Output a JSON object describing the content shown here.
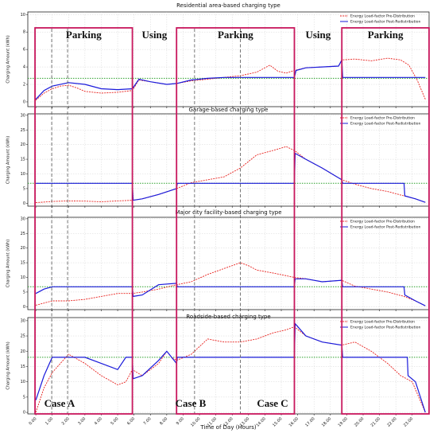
{
  "chart_data": [
    {
      "type": "line",
      "title": "Residential area-based charging type",
      "ylabel": "Charging Amount (kWh)",
      "xlim": [
        -0.49,
        24.03
      ],
      "ylim": [
        -0.55,
        10.3
      ],
      "yticks": [
        0,
        2,
        4,
        6,
        8,
        10
      ],
      "grid": true,
      "legend": "upper right",
      "reference_line": 2.7,
      "reference_color": "#2ca02c",
      "series": [
        {
          "name": "Energy Load-factor Pre-Distribution",
          "color": "#e8231f",
          "dash": true,
          "x": [
            0,
            0.5,
            1,
            1.5,
            2,
            2.5,
            3,
            4,
            5,
            5.9,
            6.3,
            7,
            8,
            8.6,
            9.5,
            10.5,
            11.5,
            12.5,
            13.5,
            14.3,
            14.8,
            15.3,
            15.8,
            16.5,
            17.5,
            18.5,
            18.7,
            19.5,
            20.5,
            21.5,
            22.3,
            22.8,
            23.3,
            23.8
          ],
          "values": [
            0.2,
            1.0,
            1.5,
            1.8,
            1.9,
            1.6,
            1.2,
            1.0,
            1.1,
            1.3,
            2.5,
            2.3,
            2.0,
            2.1,
            2.4,
            2.6,
            2.8,
            3.0,
            3.4,
            4.2,
            3.5,
            3.3,
            3.6,
            3.9,
            4.0,
            4.1,
            4.8,
            4.9,
            4.7,
            5.0,
            4.8,
            4.2,
            2.5,
            0.3
          ]
        },
        {
          "name": "Energy Load-factor Post-Redistribution",
          "color": "#1a1adb",
          "dash": false,
          "x": [
            0,
            0.5,
            1,
            2,
            3,
            4,
            5,
            5.9,
            6.3,
            7,
            8,
            8.6,
            9.5,
            10.5,
            11.5,
            12.5,
            15.8,
            15.9,
            16.5,
            17.5,
            18.5,
            18.7,
            18.75,
            23.8
          ],
          "values": [
            0.3,
            1.3,
            1.8,
            2.2,
            2.0,
            1.5,
            1.4,
            1.5,
            2.6,
            2.3,
            2.0,
            2.1,
            2.5,
            2.7,
            2.8,
            2.8,
            2.8,
            3.6,
            3.9,
            4.0,
            4.1,
            4.8,
            2.8,
            2.8
          ]
        }
      ]
    },
    {
      "type": "line",
      "title": "Garage-based charging type",
      "ylabel": "Charging Amount (kWh)",
      "xlim": [
        -0.49,
        24.03
      ],
      "ylim": [
        -1,
        30.5
      ],
      "yticks": [
        0,
        5,
        10,
        15,
        20,
        25,
        30
      ],
      "grid": true,
      "legend": "upper right",
      "reference_line": 6.8,
      "reference_color": "#2ca02c",
      "series": [
        {
          "name": "Energy Load-factor Pre-Distribution",
          "color": "#e8231f",
          "dash": true,
          "x": [
            0,
            1,
            2,
            3,
            4,
            5,
            5.9,
            6.5,
            7.5,
            8.6,
            9.5,
            10.5,
            11.5,
            12.5,
            13.5,
            14.5,
            15.3,
            15.8,
            16.5,
            17.5,
            18.7,
            19.5,
            20.5,
            21.5,
            22.5,
            23.2,
            23.8
          ],
          "values": [
            0.2,
            0.6,
            0.8,
            0.7,
            0.5,
            0.8,
            1.0,
            1.5,
            3,
            5,
            7,
            8,
            9,
            12,
            16.5,
            18,
            19.3,
            18,
            15,
            12,
            8,
            6.5,
            5,
            4,
            2.5,
            1.5,
            0.3
          ]
        },
        {
          "name": "Energy Load-factor Post-Redistribution",
          "color": "#1a1adb",
          "dash": false,
          "x": [
            0,
            5.9,
            5.95,
            6.5,
            7.5,
            8.6,
            8.65,
            15.8,
            15.85,
            16.5,
            17.5,
            18.7,
            18.75,
            22.5,
            22.55,
            23.2,
            23.8
          ],
          "values": [
            6.8,
            6.8,
            1,
            1.5,
            3,
            5,
            6.8,
            6.8,
            17,
            15,
            12,
            8,
            6.8,
            6.8,
            2.5,
            1.5,
            0.3
          ]
        }
      ]
    },
    {
      "type": "line",
      "title": "Major city facility-based charging type",
      "ylabel": "Charging Amount (kWh)",
      "xlim": [
        -0.49,
        24.03
      ],
      "ylim": [
        -1,
        30.5
      ],
      "yticks": [
        0,
        5,
        10,
        15,
        20,
        25,
        30
      ],
      "grid": true,
      "legend": "upper right",
      "reference_line": 6.8,
      "reference_color": "#2ca02c",
      "series": [
        {
          "name": "Energy Load-factor Pre-Distribution",
          "color": "#e8231f",
          "dash": true,
          "x": [
            0,
            1,
            2,
            3,
            4,
            5,
            5.9,
            6.5,
            7.5,
            8.6,
            9.5,
            10.5,
            11.5,
            12.5,
            13,
            13.5,
            14.5,
            15.8,
            16.5,
            17.5,
            18.7,
            19.5,
            20.5,
            21.5,
            22.5,
            23.2,
            23.8
          ],
          "values": [
            0.5,
            2,
            2,
            2.5,
            3.5,
            4.5,
            4.5,
            5,
            6,
            7.5,
            8.5,
            11,
            13,
            15,
            14,
            12.5,
            11.5,
            10,
            9.5,
            8.5,
            9,
            7,
            6,
            5,
            3.5,
            2,
            0.3
          ]
        },
        {
          "name": "Energy Load-factor Post-Redistribution",
          "color": "#1a1adb",
          "dash": false,
          "x": [
            0,
            0.5,
            1,
            5.9,
            5.95,
            6.5,
            7.5,
            8.6,
            8.65,
            15.8,
            15.85,
            16.5,
            17.5,
            18.7,
            18.75,
            22.5,
            22.55,
            23.2,
            23.8
          ],
          "values": [
            4.5,
            6,
            6.8,
            6.8,
            3.5,
            4,
            7.5,
            8,
            6.8,
            6.8,
            9.5,
            9.5,
            8.5,
            9,
            6.8,
            6.8,
            4,
            2,
            0.3
          ]
        }
      ]
    },
    {
      "type": "line",
      "title": "Roadside-based charging type",
      "ylabel": "Charging Amount (kWh)",
      "xlabel": "Time of Day (Hours)",
      "xlim": [
        -0.49,
        24.03
      ],
      "ylim": [
        -0.5,
        31
      ],
      "yticks": [
        0,
        5,
        10,
        15,
        20,
        25,
        30
      ],
      "grid": true,
      "legend": "upper right",
      "reference_line": 18,
      "reference_color": "#2ca02c",
      "xticks": [
        {
          "value": 0,
          "label": "0.00"
        },
        {
          "value": 1,
          "label": "1.00"
        },
        {
          "value": 2,
          "label": "2.00"
        },
        {
          "value": 3,
          "label": "3.00"
        },
        {
          "value": 4,
          "label": "4.00"
        },
        {
          "value": 5,
          "label": "5.00"
        },
        {
          "value": 6,
          "label": "6.00"
        },
        {
          "value": 7,
          "label": "7.00"
        },
        {
          "value": 8,
          "label": "8.00"
        },
        {
          "value": 9,
          "label": "9.00"
        },
        {
          "value": 10,
          "label": "10.00"
        },
        {
          "value": 11,
          "label": "11.00"
        },
        {
          "value": 12,
          "label": "12.00"
        },
        {
          "value": 13,
          "label": "13.00"
        },
        {
          "value": 14,
          "label": "14.00"
        },
        {
          "value": 15,
          "label": "15.00"
        },
        {
          "value": 16,
          "label": "16.00"
        },
        {
          "value": 17,
          "label": "17.00"
        },
        {
          "value": 18,
          "label": "18.00"
        },
        {
          "value": 19,
          "label": "19.00"
        },
        {
          "value": 20,
          "label": "20.00"
        },
        {
          "value": 21,
          "label": "21.00"
        },
        {
          "value": 22,
          "label": "22.00"
        },
        {
          "value": 23,
          "label": "23.00"
        }
      ],
      "series": [
        {
          "name": "Energy Load-factor Pre-Distribution",
          "color": "#e8231f",
          "dash": true,
          "x": [
            0,
            0.5,
            1,
            2,
            3,
            4,
            5,
            5.5,
            5.9,
            6.5,
            7.5,
            8,
            8.3,
            8.6,
            9.5,
            10.5,
            11.5,
            12.5,
            13.5,
            14.5,
            15.3,
            15.8,
            16.5,
            17.5,
            18.7,
            19.5,
            20.5,
            21.5,
            22.3,
            23,
            23.8
          ],
          "values": [
            0,
            8,
            13,
            19,
            16,
            12,
            9,
            10,
            14,
            12,
            16,
            20,
            18,
            17,
            19,
            24,
            23,
            23,
            24,
            26,
            27,
            28,
            25,
            23,
            22,
            23,
            20,
            16,
            12,
            10,
            0
          ]
        },
        {
          "name": "Energy Load-factor Post-Redistribution",
          "color": "#1a1adb",
          "dash": false,
          "x": [
            0,
            0.5,
            1,
            3,
            4,
            5,
            5.5,
            5.9,
            5.95,
            6.5,
            7.5,
            8,
            8.6,
            8.65,
            15.8,
            15.85,
            16.5,
            17.5,
            18.7,
            18.75,
            22.7,
            22.75,
            23.2,
            23.8
          ],
          "values": [
            4,
            12,
            18,
            18,
            16,
            14,
            18,
            18,
            11,
            12,
            17,
            20,
            16,
            18,
            18,
            29,
            25,
            23,
            22,
            18,
            18,
            12,
            10,
            0
          ]
        }
      ]
    }
  ],
  "phases": [
    {
      "label": "Parking",
      "start": -0.05,
      "end": 5.9,
      "boxed": true
    },
    {
      "label": "Using",
      "start": 5.9,
      "end": 8.6,
      "boxed": false
    },
    {
      "label": "Parking",
      "start": 8.6,
      "end": 15.8,
      "boxed": true
    },
    {
      "label": "Using",
      "start": 15.8,
      "end": 18.7,
      "boxed": false
    },
    {
      "label": "Parking",
      "start": 18.7,
      "end": 24.03,
      "boxed": true
    }
  ],
  "phase_color": "#c8175d",
  "vlines": [
    0.97,
    1.94,
    9.7,
    12.5
  ],
  "cases": [
    "Case A",
    "Case B",
    "Case C"
  ]
}
